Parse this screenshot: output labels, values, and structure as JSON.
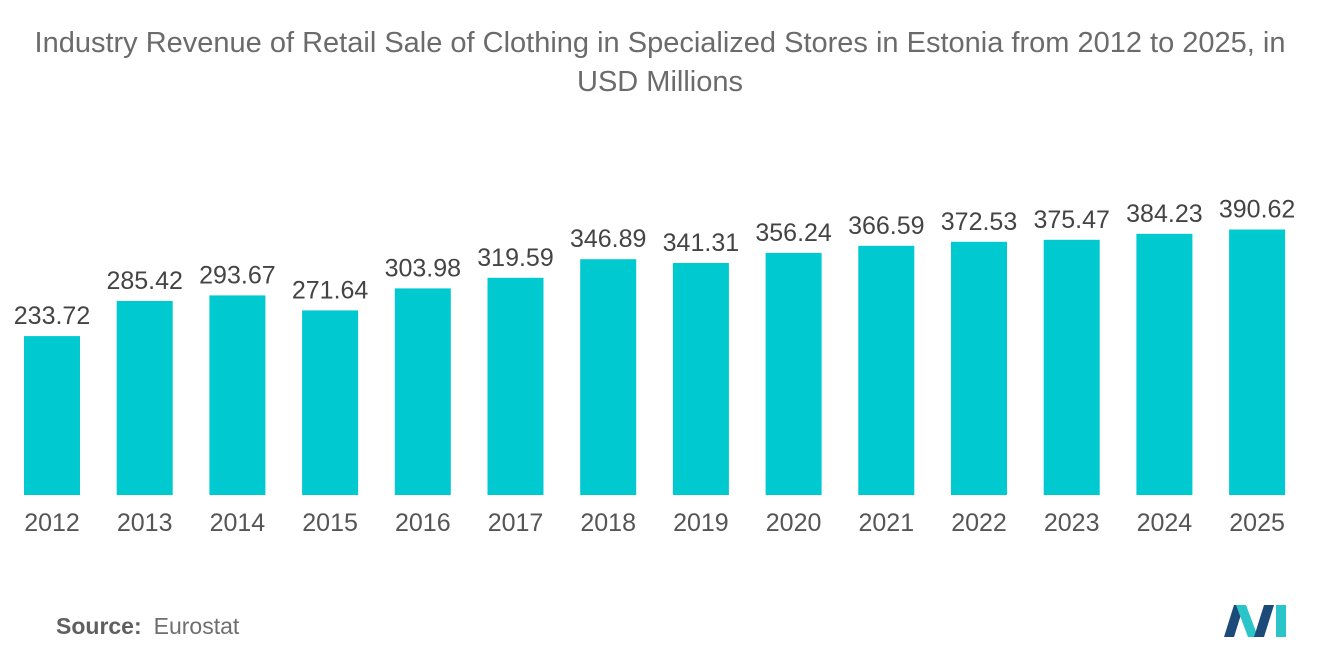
{
  "title": "Industry Revenue of Retail Sale of Clothing in Specialized Stores in Estonia from 2012 to 2025, in USD Millions",
  "source": {
    "label": "Source:",
    "value": "Eurostat"
  },
  "logo": {
    "icon": "mordor-intelligence-logo",
    "colors": [
      "#1c4b7a",
      "#2bc4c8"
    ]
  },
  "chart_data": {
    "type": "bar",
    "title": "Industry Revenue of Retail Sale of Clothing in Specialized Stores in Estonia from 2012 to 2025, in USD Millions",
    "xlabel": "",
    "ylabel": "",
    "categories": [
      "2012",
      "2013",
      "2014",
      "2015",
      "2016",
      "2017",
      "2018",
      "2019",
      "2020",
      "2021",
      "2022",
      "2023",
      "2024",
      "2025"
    ],
    "values": [
      233.72,
      285.42,
      293.67,
      271.64,
      303.98,
      319.59,
      346.89,
      341.31,
      356.24,
      366.59,
      372.53,
      375.47,
      384.23,
      390.62
    ],
    "value_labels": [
      "233.72",
      "285.42",
      "293.67",
      "271.64",
      "303.98",
      "319.59",
      "346.89",
      "341.31",
      "356.24",
      "366.59",
      "372.53",
      "375.47",
      "384.23",
      "390.62"
    ],
    "bar_color": "#00c9d0",
    "grid": false,
    "legend": "none"
  }
}
